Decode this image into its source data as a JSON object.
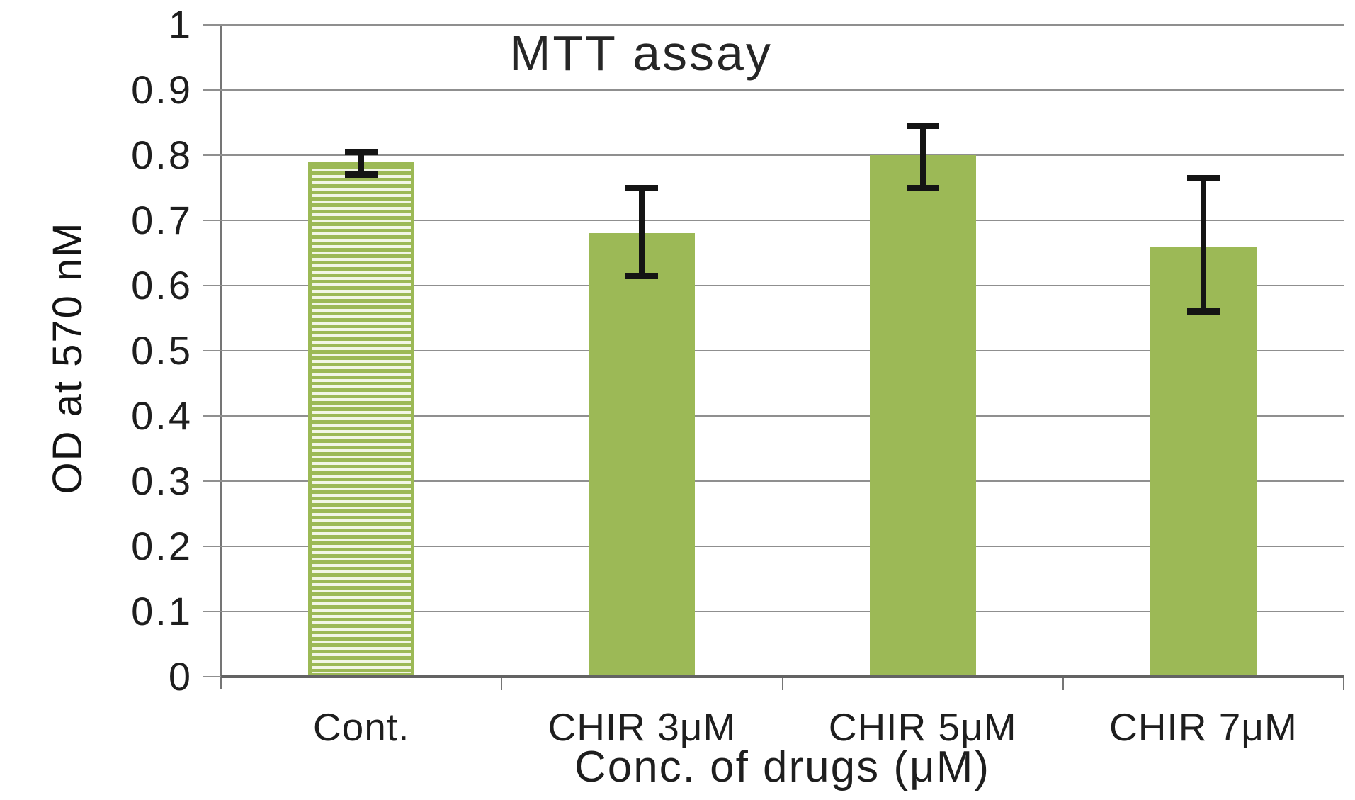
{
  "chart_data": {
    "type": "bar",
    "title": "MTT assay",
    "xlabel": "Conc. of drugs (μM)",
    "ylabel": "OD at 570 nM",
    "categories": [
      "Cont.",
      "CHIR 3μM",
      "CHIR 5μM",
      "CHIR 7μM"
    ],
    "values": [
      0.79,
      0.68,
      0.8,
      0.66
    ],
    "error_high": [
      0.805,
      0.75,
      0.845,
      0.765
    ],
    "error_low": [
      0.77,
      0.615,
      0.75,
      0.56
    ],
    "bar_styles": [
      "hatched-horizontal-stripes",
      "solid",
      "solid",
      "solid"
    ],
    "ylim": [
      0,
      1
    ],
    "ytick_values": [
      0,
      0.1,
      0.2,
      0.3,
      0.4,
      0.5,
      0.6,
      0.7,
      0.8,
      0.9,
      1
    ],
    "ytick_labels": [
      "0",
      "0.1",
      "0.2",
      "0.3",
      "0.4",
      "0.5",
      "0.6",
      "0.7",
      "0.8",
      "0.9",
      "1"
    ],
    "grid": "horizontal-gridlines",
    "legend": "none",
    "colors": {
      "bar_green": "#9cb956",
      "hatch_light": "#f2f6e6",
      "error_bar": "#141414",
      "gridline": "#8f8f8f",
      "axis": "#6a6a6a",
      "text": "#1e1e1e"
    }
  }
}
